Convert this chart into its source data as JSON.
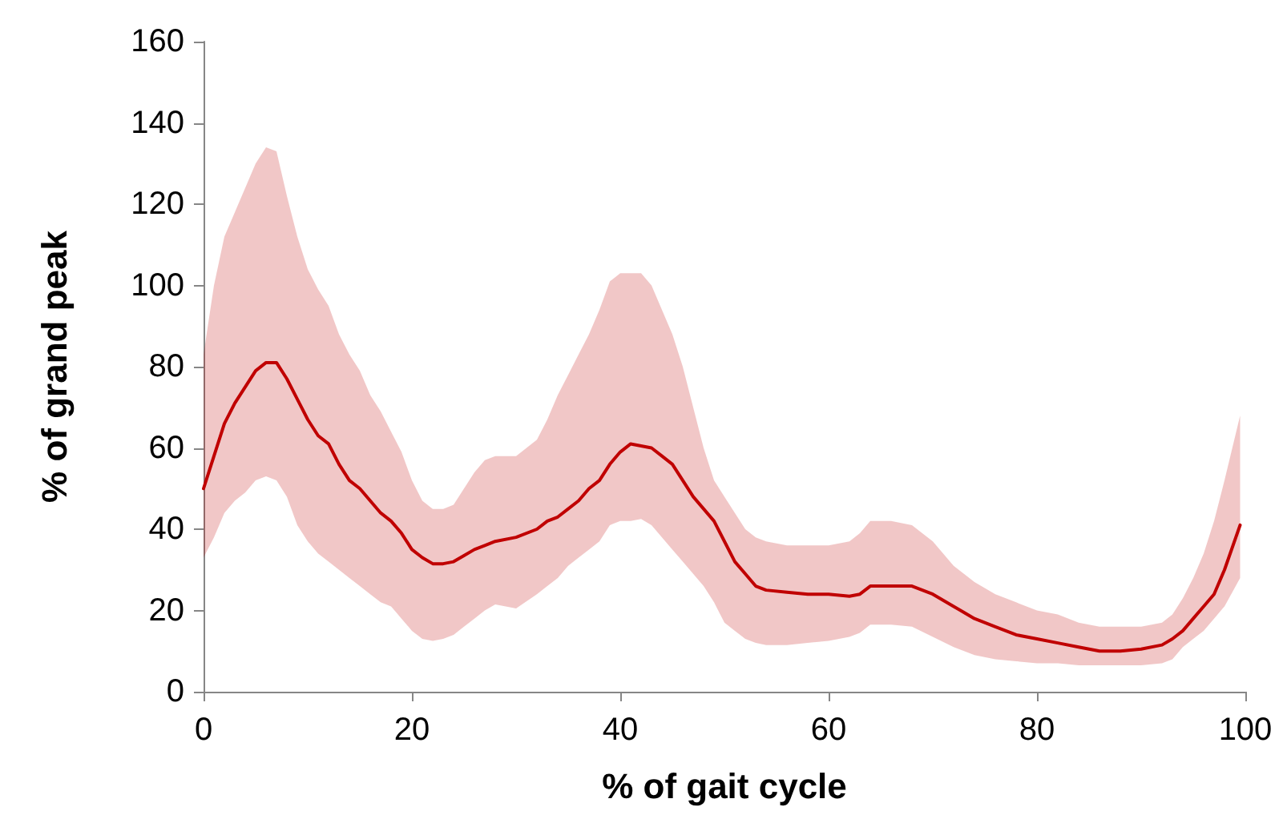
{
  "chart_data": {
    "type": "line",
    "xlabel": "% of gait cycle",
    "ylabel": "% of grand peak",
    "xlim": [
      0,
      100
    ],
    "xticks": [
      0,
      20,
      40,
      60,
      80,
      100
    ],
    "ylim": [
      0,
      160
    ],
    "yticks": [
      0,
      20,
      40,
      60,
      80,
      100,
      120,
      140,
      160
    ],
    "grid": false,
    "marker": "none",
    "line_style": "solid",
    "series": [
      {
        "color": "#c00000",
        "x": [
          0,
          1,
          2,
          3,
          4,
          5,
          6,
          7,
          8,
          9,
          10,
          11,
          12,
          13,
          14,
          15,
          16,
          17,
          18,
          19,
          20,
          21,
          22,
          23,
          24,
          25,
          26,
          27,
          28,
          30,
          32,
          33,
          34,
          35,
          36,
          37,
          38,
          39,
          40,
          41,
          42,
          43,
          44,
          45,
          46,
          47,
          48,
          49,
          50,
          51,
          52,
          53,
          54,
          56,
          58,
          60,
          62,
          63,
          64,
          66,
          68,
          70,
          72,
          74,
          76,
          78,
          80,
          82,
          84,
          86,
          88,
          90,
          92,
          93,
          94,
          95,
          96,
          97,
          98,
          99.5
        ],
        "values": [
          50,
          58,
          66,
          71,
          75,
          79,
          81,
          81,
          77,
          72,
          67,
          63,
          61,
          56,
          52,
          50,
          47,
          44,
          42,
          39,
          35,
          33,
          31.5,
          31.5,
          32,
          33.5,
          35,
          36,
          37,
          38,
          40,
          42,
          43,
          45,
          47,
          50,
          52,
          56,
          59,
          61,
          60.5,
          60,
          58,
          56,
          52,
          48,
          45,
          42,
          37,
          32,
          29,
          26,
          25,
          24.5,
          24,
          24,
          23.5,
          24,
          26,
          26,
          26,
          24,
          21,
          18,
          16,
          14,
          13,
          12,
          11,
          10,
          10,
          10.5,
          11.5,
          13,
          15,
          18,
          21,
          24,
          30,
          41
        ],
        "upper": [
          83,
          100,
          112,
          118,
          124,
          130,
          134,
          133,
          122,
          112,
          104,
          99,
          95,
          88,
          83,
          79,
          73,
          69,
          64,
          59,
          52,
          47,
          45,
          45,
          46,
          50,
          54,
          57,
          58,
          58,
          62,
          67,
          73,
          78,
          83,
          88,
          94,
          101,
          103,
          103,
          103,
          100,
          94,
          88,
          80,
          70,
          60,
          52,
          48,
          44,
          40,
          38,
          37,
          36,
          36,
          36,
          37,
          39,
          42,
          42,
          41,
          37,
          31,
          27,
          24,
          22,
          20,
          19,
          17,
          16,
          16,
          16,
          17,
          19,
          23,
          28,
          34,
          42,
          52,
          68
        ],
        "lower": [
          33,
          38,
          44,
          47,
          49,
          52,
          53,
          52,
          48,
          41,
          37,
          34,
          32,
          30,
          28,
          26,
          24,
          22,
          21,
          18,
          15,
          13,
          12.5,
          13,
          14,
          16,
          18,
          20,
          21.5,
          20.5,
          24,
          26,
          28,
          31,
          33,
          35,
          37,
          41,
          42,
          42,
          42.5,
          41,
          38,
          35,
          32,
          29,
          26,
          22,
          17,
          15,
          13,
          12,
          11.5,
          11.5,
          12,
          12.5,
          13.5,
          14.5,
          16.5,
          16.5,
          16,
          13.5,
          11,
          9,
          8,
          7.5,
          7,
          7,
          6.5,
          6.5,
          6.5,
          6.5,
          7,
          8,
          11,
          13,
          15,
          18,
          21,
          28
        ]
      }
    ]
  }
}
